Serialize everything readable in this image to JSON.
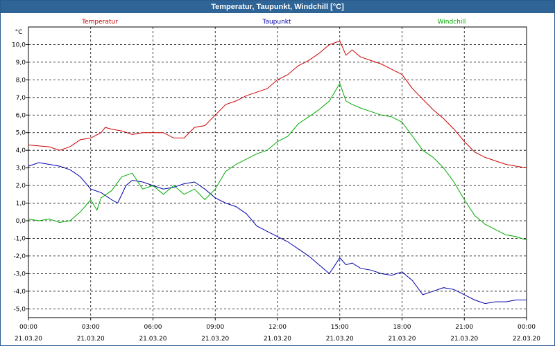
{
  "window": {
    "title": "Temperatur, Taupunkt, Windchill [°C]"
  },
  "chart_data": {
    "type": "line",
    "title": "Temperatur, Taupunkt, Windchill [°C]",
    "ylabel": "°C",
    "ylim": [
      -5.5,
      11
    ],
    "y_ticks": [
      "10,0",
      "9,0",
      "8,0",
      "7,0",
      "6,0",
      "5,0",
      "4,0",
      "3,0",
      "2,0",
      "1,0",
      "0,0",
      "-1,0",
      "-2,0",
      "-3,0",
      "-4,0",
      "-5,0"
    ],
    "x_ticks": [
      {
        "time": "00:00",
        "date": "21.03.20"
      },
      {
        "time": "03:00",
        "date": "21.03.20"
      },
      {
        "time": "06:00",
        "date": "21.03.20"
      },
      {
        "time": "09:00",
        "date": "21.03.20"
      },
      {
        "time": "12:00",
        "date": "21.03.20"
      },
      {
        "time": "15:00",
        "date": "21.03.20"
      },
      {
        "time": "18:00",
        "date": "21.03.20"
      },
      {
        "time": "21:00",
        "date": "21.03.20"
      },
      {
        "time": "00:00",
        "date": "22.03.20"
      }
    ],
    "grid": true,
    "legend_position": "top",
    "series": [
      {
        "name": "Temperatur",
        "color": "#cc0000",
        "points": [
          [
            0,
            4.3
          ],
          [
            1,
            4.2
          ],
          [
            1.5,
            4.0
          ],
          [
            2,
            4.2
          ],
          [
            2.5,
            4.6
          ],
          [
            3,
            4.7
          ],
          [
            3.5,
            5.0
          ],
          [
            3.7,
            5.3
          ],
          [
            4,
            5.2
          ],
          [
            4.5,
            5.1
          ],
          [
            5,
            4.9
          ],
          [
            5.5,
            5.0
          ],
          [
            6,
            5.0
          ],
          [
            6.5,
            5.0
          ],
          [
            7,
            4.7
          ],
          [
            7.5,
            4.7
          ],
          [
            8,
            5.3
          ],
          [
            8.5,
            5.4
          ],
          [
            9,
            6.0
          ],
          [
            9.5,
            6.6
          ],
          [
            10,
            6.8
          ],
          [
            10.5,
            7.1
          ],
          [
            11,
            7.3
          ],
          [
            11.5,
            7.5
          ],
          [
            12,
            8.0
          ],
          [
            12.5,
            8.3
          ],
          [
            13,
            8.8
          ],
          [
            13.5,
            9.1
          ],
          [
            14,
            9.5
          ],
          [
            14.5,
            10.0
          ],
          [
            15,
            10.2
          ],
          [
            15.3,
            9.4
          ],
          [
            15.6,
            9.7
          ],
          [
            16,
            9.3
          ],
          [
            16.5,
            9.1
          ],
          [
            17,
            8.9
          ],
          [
            17.5,
            8.6
          ],
          [
            18,
            8.3
          ],
          [
            18.5,
            7.5
          ],
          [
            19,
            6.9
          ],
          [
            19.5,
            6.3
          ],
          [
            20,
            5.8
          ],
          [
            20.5,
            5.2
          ],
          [
            21,
            4.5
          ],
          [
            21.5,
            3.9
          ],
          [
            22,
            3.6
          ],
          [
            22.5,
            3.4
          ],
          [
            23,
            3.2
          ],
          [
            23.5,
            3.1
          ],
          [
            24,
            3.0
          ]
        ]
      },
      {
        "name": "Taupunkt",
        "color": "#0000aa",
        "points": [
          [
            0,
            3.1
          ],
          [
            0.5,
            3.3
          ],
          [
            1,
            3.2
          ],
          [
            1.5,
            3.1
          ],
          [
            2,
            2.9
          ],
          [
            2.5,
            2.5
          ],
          [
            3,
            1.8
          ],
          [
            3.5,
            1.6
          ],
          [
            4,
            1.2
          ],
          [
            4.3,
            1.0
          ],
          [
            4.7,
            2.0
          ],
          [
            5,
            2.3
          ],
          [
            5.5,
            2.2
          ],
          [
            6,
            2.0
          ],
          [
            6.5,
            1.8
          ],
          [
            7,
            1.9
          ],
          [
            7.5,
            2.1
          ],
          [
            8,
            2.2
          ],
          [
            8.5,
            1.8
          ],
          [
            9,
            1.3
          ],
          [
            9.5,
            1.0
          ],
          [
            10,
            0.8
          ],
          [
            10.5,
            0.4
          ],
          [
            11,
            -0.3
          ],
          [
            11.5,
            -0.6
          ],
          [
            12,
            -0.9
          ],
          [
            12.5,
            -1.2
          ],
          [
            13,
            -1.6
          ],
          [
            13.5,
            -2.0
          ],
          [
            14,
            -2.5
          ],
          [
            14.5,
            -3.0
          ],
          [
            15,
            -2.1
          ],
          [
            15.3,
            -2.5
          ],
          [
            15.6,
            -2.4
          ],
          [
            16,
            -2.7
          ],
          [
            16.5,
            -2.8
          ],
          [
            17,
            -3.0
          ],
          [
            17.5,
            -3.1
          ],
          [
            18,
            -2.9
          ],
          [
            18.5,
            -3.4
          ],
          [
            19,
            -4.2
          ],
          [
            19.5,
            -4.0
          ],
          [
            20,
            -3.8
          ],
          [
            20.5,
            -3.9
          ],
          [
            21,
            -4.2
          ],
          [
            21.5,
            -4.5
          ],
          [
            22,
            -4.7
          ],
          [
            22.5,
            -4.6
          ],
          [
            23,
            -4.6
          ],
          [
            23.5,
            -4.5
          ],
          [
            24,
            -4.5
          ]
        ]
      },
      {
        "name": "Windchill",
        "color": "#00aa00",
        "points": [
          [
            0,
            0.1
          ],
          [
            0.5,
            0.0
          ],
          [
            1,
            0.1
          ],
          [
            1.5,
            -0.1
          ],
          [
            2,
            0.0
          ],
          [
            2.5,
            0.5
          ],
          [
            3,
            1.2
          ],
          [
            3.3,
            0.6
          ],
          [
            3.5,
            1.3
          ],
          [
            4,
            1.7
          ],
          [
            4.5,
            2.5
          ],
          [
            5,
            2.7
          ],
          [
            5.5,
            1.8
          ],
          [
            6,
            2.0
          ],
          [
            6.5,
            1.5
          ],
          [
            7,
            2.0
          ],
          [
            7.5,
            1.5
          ],
          [
            8,
            1.8
          ],
          [
            8.5,
            1.2
          ],
          [
            9,
            1.8
          ],
          [
            9.5,
            2.8
          ],
          [
            10,
            3.2
          ],
          [
            10.5,
            3.5
          ],
          [
            11,
            3.8
          ],
          [
            11.5,
            4.0
          ],
          [
            12,
            4.5
          ],
          [
            12.5,
            4.8
          ],
          [
            13,
            5.5
          ],
          [
            13.5,
            5.9
          ],
          [
            14,
            6.3
          ],
          [
            14.5,
            6.8
          ],
          [
            15,
            7.8
          ],
          [
            15.3,
            6.8
          ],
          [
            15.6,
            6.6
          ],
          [
            16,
            6.4
          ],
          [
            16.5,
            6.2
          ],
          [
            17,
            6.0
          ],
          [
            17.5,
            5.9
          ],
          [
            18,
            5.6
          ],
          [
            18.5,
            4.8
          ],
          [
            19,
            4.0
          ],
          [
            19.5,
            3.6
          ],
          [
            20,
            3.0
          ],
          [
            20.5,
            2.2
          ],
          [
            21,
            1.2
          ],
          [
            21.5,
            0.3
          ],
          [
            22,
            -0.2
          ],
          [
            22.5,
            -0.5
          ],
          [
            23,
            -0.8
          ],
          [
            23.5,
            -0.9
          ],
          [
            24,
            -1.1
          ]
        ]
      }
    ]
  }
}
